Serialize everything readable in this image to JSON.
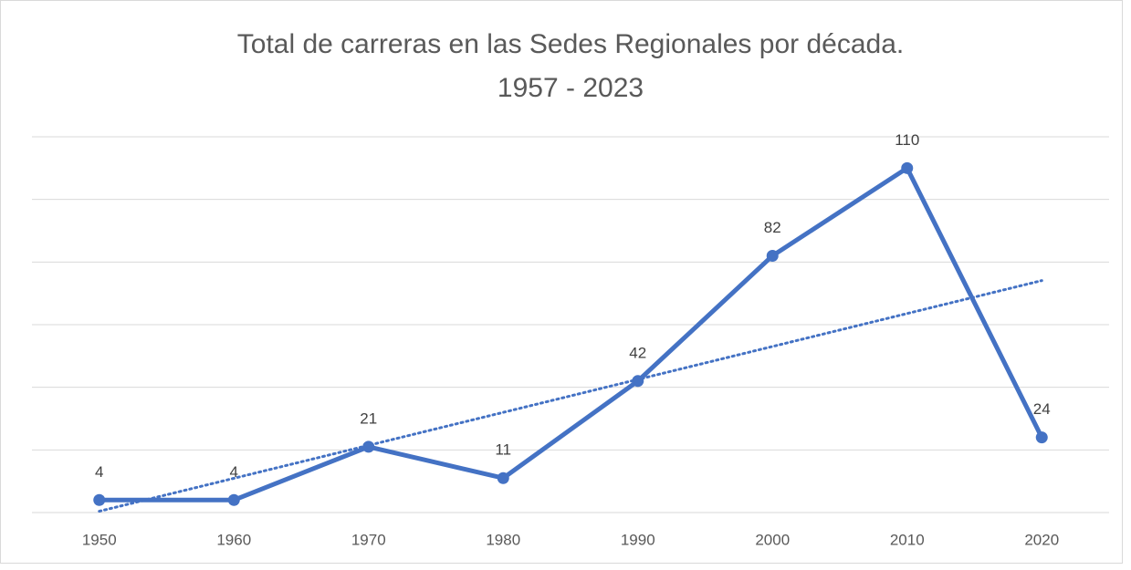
{
  "chart_data": {
    "type": "line",
    "title": [
      "Total de carreras en las Sedes Regionales por década.",
      "1957 - 2023"
    ],
    "categories": [
      "1950",
      "1960",
      "1970",
      "1980",
      "1990",
      "2000",
      "2010",
      "2020"
    ],
    "values": [
      4,
      4,
      21,
      11,
      42,
      82,
      110,
      24
    ],
    "color": "#4472c4",
    "ylim": [
      0,
      120
    ],
    "yticks": [
      0,
      20,
      40,
      60,
      80,
      100,
      120
    ],
    "grid": true,
    "trendline": "linear",
    "data_labels": true
  }
}
